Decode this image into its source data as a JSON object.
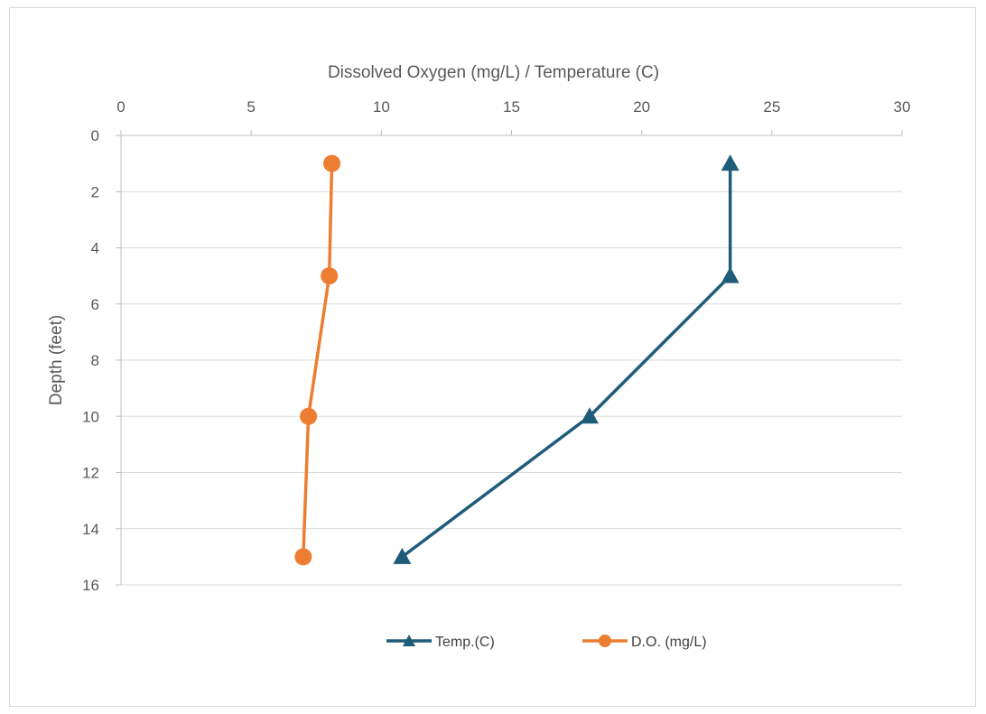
{
  "chart_data": {
    "type": "line",
    "orientation": "depth-profile",
    "xlabel": "Dissolved Oxygen (mg/L) / Temperature (C)",
    "ylabel": "Depth (feet)",
    "xlim": [
      0,
      30
    ],
    "ylim": [
      0,
      16
    ],
    "x_ticks": [
      0,
      5,
      10,
      15,
      20,
      25,
      30
    ],
    "y_ticks": [
      0,
      2,
      4,
      6,
      8,
      10,
      12,
      14,
      16
    ],
    "x_axis_position": "top",
    "y_axis_inverted": true,
    "grid": "horizontal",
    "legend_position": "bottom",
    "series": [
      {
        "name": "Temp.(C)",
        "color": "#1f5c7a",
        "marker": "triangle",
        "points": [
          {
            "x": 23.4,
            "depth": 1
          },
          {
            "x": 23.4,
            "depth": 5
          },
          {
            "x": 18.0,
            "depth": 10
          },
          {
            "x": 10.8,
            "depth": 15
          }
        ]
      },
      {
        "name": "D.O. (mg/L)",
        "color": "#ed7d31",
        "marker": "circle",
        "points": [
          {
            "x": 8.1,
            "depth": 1
          },
          {
            "x": 8.0,
            "depth": 5
          },
          {
            "x": 7.2,
            "depth": 10
          },
          {
            "x": 7.0,
            "depth": 15
          }
        ]
      }
    ]
  }
}
